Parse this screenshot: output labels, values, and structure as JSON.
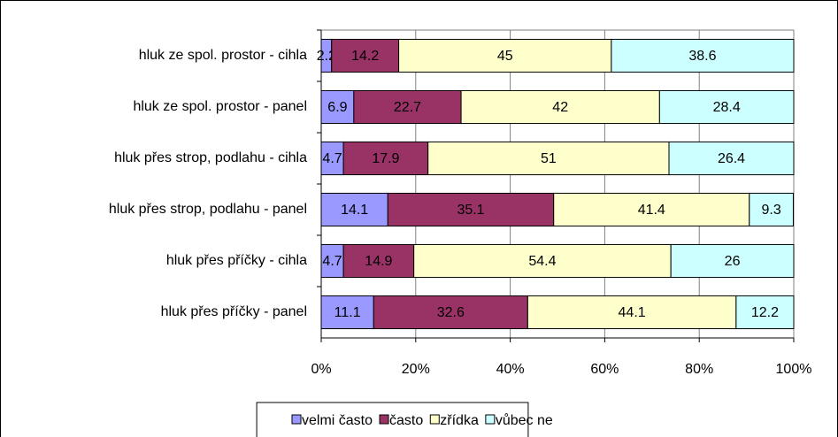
{
  "chart_data": {
    "type": "stacked-bar-horizontal",
    "categories": [
      "hluk ze spol. prostor - cihla",
      "hluk ze spol. prostor - panel",
      "hluk přes strop, podlahu - cihla",
      "hluk přes strop, podlahu - panel",
      "hluk přes příčky - cihla",
      "hluk přes příčky - panel"
    ],
    "series": [
      {
        "name": "velmi často",
        "color": "#9999ff",
        "values": [
          2.2,
          6.9,
          4.7,
          14.1,
          4.7,
          11.1
        ]
      },
      {
        "name": "často",
        "color": "#993366",
        "values": [
          14.2,
          22.7,
          17.9,
          35.1,
          14.9,
          32.6
        ]
      },
      {
        "name": "zřídka",
        "color": "#ffffcc",
        "values": [
          45,
          42,
          51,
          41.4,
          54.4,
          44.1
        ]
      },
      {
        "name": "vůbec ne",
        "color": "#ccffff",
        "values": [
          38.6,
          28.4,
          26.4,
          9.3,
          26,
          12.2
        ]
      }
    ],
    "xlim": [
      0,
      100
    ],
    "xticks": [
      {
        "value": 0,
        "label": "0%"
      },
      {
        "value": 20,
        "label": "20%"
      },
      {
        "value": 40,
        "label": "40%"
      },
      {
        "value": 60,
        "label": "60%"
      },
      {
        "value": 80,
        "label": "80%"
      },
      {
        "value": 100,
        "label": "100%"
      }
    ],
    "grid": true,
    "legend": "bottom"
  }
}
